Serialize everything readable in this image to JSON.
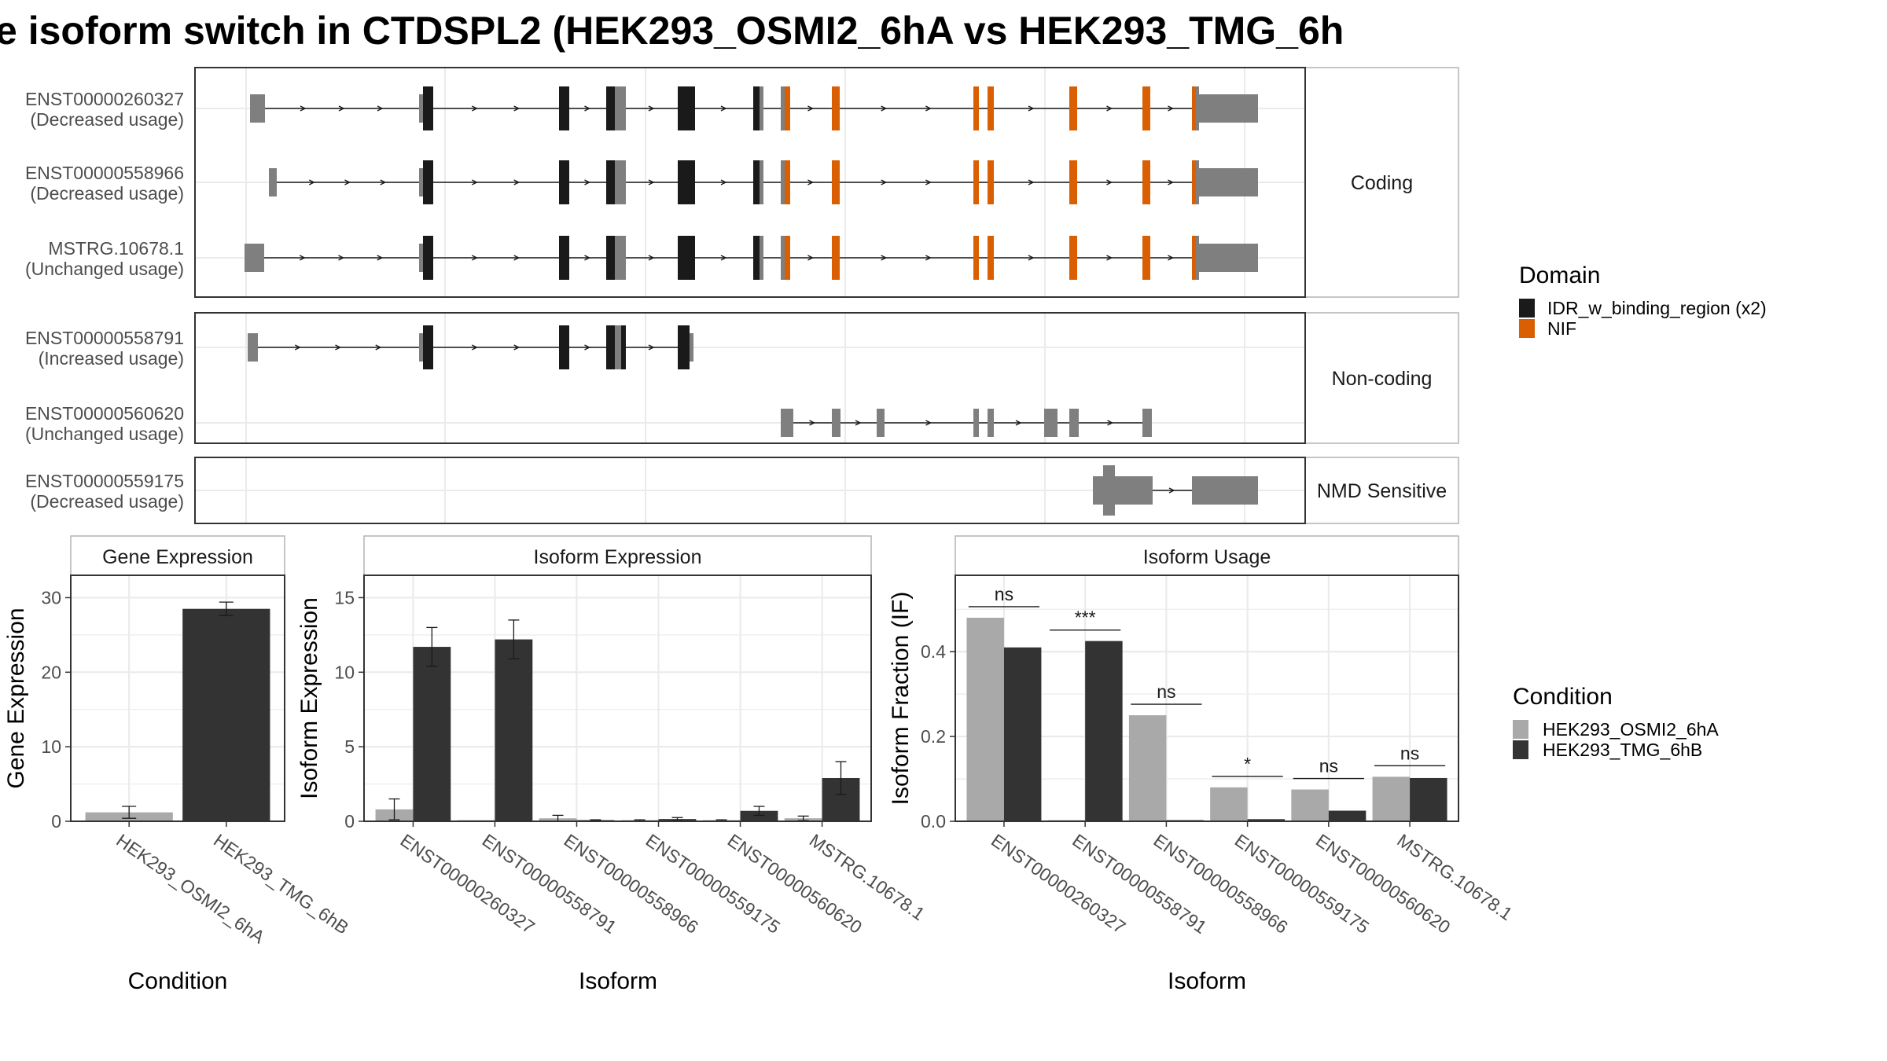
{
  "title": "e isoform switch in CTDSPL2 (HEK293_OSMI2_6hA vs HEK293_TMG_6h",
  "colors": {
    "idr": "#1a1a1a",
    "nif": "#d95f02",
    "utr": "#7f7f7f",
    "cond_a": "#a9a9a9",
    "cond_b": "#333333",
    "panel_border": "#333333",
    "grid_major": "#ebebeb",
    "strip_border": "#b3b3b3"
  },
  "domain_legend": {
    "title": "Domain",
    "items": [
      {
        "label": "IDR_w_binding_region (x2)",
        "color": "#1a1a1a"
      },
      {
        "label": "NIF",
        "color": "#d95f02"
      }
    ]
  },
  "condition_legend": {
    "title": "Condition",
    "items": [
      {
        "label": "HEK293_OSMI2_6hA",
        "color": "#a9a9a9"
      },
      {
        "label": "HEK293_TMG_6hB",
        "color": "#333333"
      }
    ]
  },
  "structure": {
    "groups": [
      {
        "strip": "Coding",
        "isoforms": [
          {
            "name": "ENST00000260327",
            "usage": "(Decreased usage)"
          },
          {
            "name": "ENST00000558966",
            "usage": "(Decreased usage)"
          },
          {
            "name": "MSTRG.10678.1",
            "usage": "(Unchanged usage)"
          }
        ]
      },
      {
        "strip": "Non-coding",
        "isoforms": [
          {
            "name": "ENST00000558791",
            "usage": "(Increased usage)"
          },
          {
            "name": "ENST00000560620",
            "usage": "(Unchanged usage)"
          }
        ]
      },
      {
        "strip": "NMD Sensitive",
        "isoforms": [
          {
            "name": "ENST00000559175",
            "usage": "(Decreased usage)"
          }
        ]
      }
    ]
  },
  "chart_data": [
    {
      "type": "bar",
      "panel": "Gene Expression",
      "xlabel": "Condition",
      "ylabel": "Gene Expression",
      "categories": [
        "HEK293_OSMI2_6hA",
        "HEK293_TMG_6hB"
      ],
      "values": [
        1.2,
        28.5
      ],
      "errors": [
        0.8,
        0.9
      ],
      "ylim": [
        0,
        33
      ],
      "yticks": [
        0,
        10,
        20,
        30
      ]
    },
    {
      "type": "bar",
      "panel": "Isoform Expression",
      "xlabel": "Isoform",
      "ylabel": "Isoform Expression",
      "categories": [
        "ENST00000260327",
        "ENST00000558791",
        "ENST00000558966",
        "ENST00000559175",
        "ENST00000560620",
        "MSTRG.10678.1"
      ],
      "series": [
        {
          "name": "HEK293_OSMI2_6hA",
          "values": [
            0.8,
            0.0,
            0.2,
            0.05,
            0.05,
            0.2
          ],
          "errors": [
            0.7,
            0.0,
            0.2,
            0.05,
            0.05,
            0.15
          ]
        },
        {
          "name": "HEK293_TMG_6hB",
          "values": [
            11.7,
            12.2,
            0.05,
            0.15,
            0.7,
            2.9
          ],
          "errors": [
            1.3,
            1.3,
            0.05,
            0.1,
            0.3,
            1.1
          ]
        }
      ],
      "ylim": [
        0,
        16.5
      ],
      "yticks": [
        0,
        5,
        10,
        15
      ]
    },
    {
      "type": "bar",
      "panel": "Isoform Usage",
      "xlabel": "Isoform",
      "ylabel": "Isoform Fraction (IF)",
      "categories": [
        "ENST00000260327",
        "ENST00000558791",
        "ENST00000558966",
        "ENST00000559175",
        "ENST00000560620",
        "MSTRG.10678.1"
      ],
      "series": [
        {
          "name": "HEK293_OSMI2_6hA",
          "values": [
            0.48,
            0.0,
            0.25,
            0.08,
            0.075,
            0.105
          ]
        },
        {
          "name": "HEK293_TMG_6hB",
          "values": [
            0.41,
            0.425,
            0.0,
            0.005,
            0.025,
            0.102
          ]
        }
      ],
      "significance": [
        "ns",
        "***",
        "ns",
        "*",
        "ns",
        "ns"
      ],
      "ylim": [
        0,
        0.58
      ],
      "yticks": [
        0.0,
        0.2,
        0.4
      ],
      "ytick_labels": [
        "0.0",
        "0.2",
        "0.4"
      ]
    }
  ]
}
